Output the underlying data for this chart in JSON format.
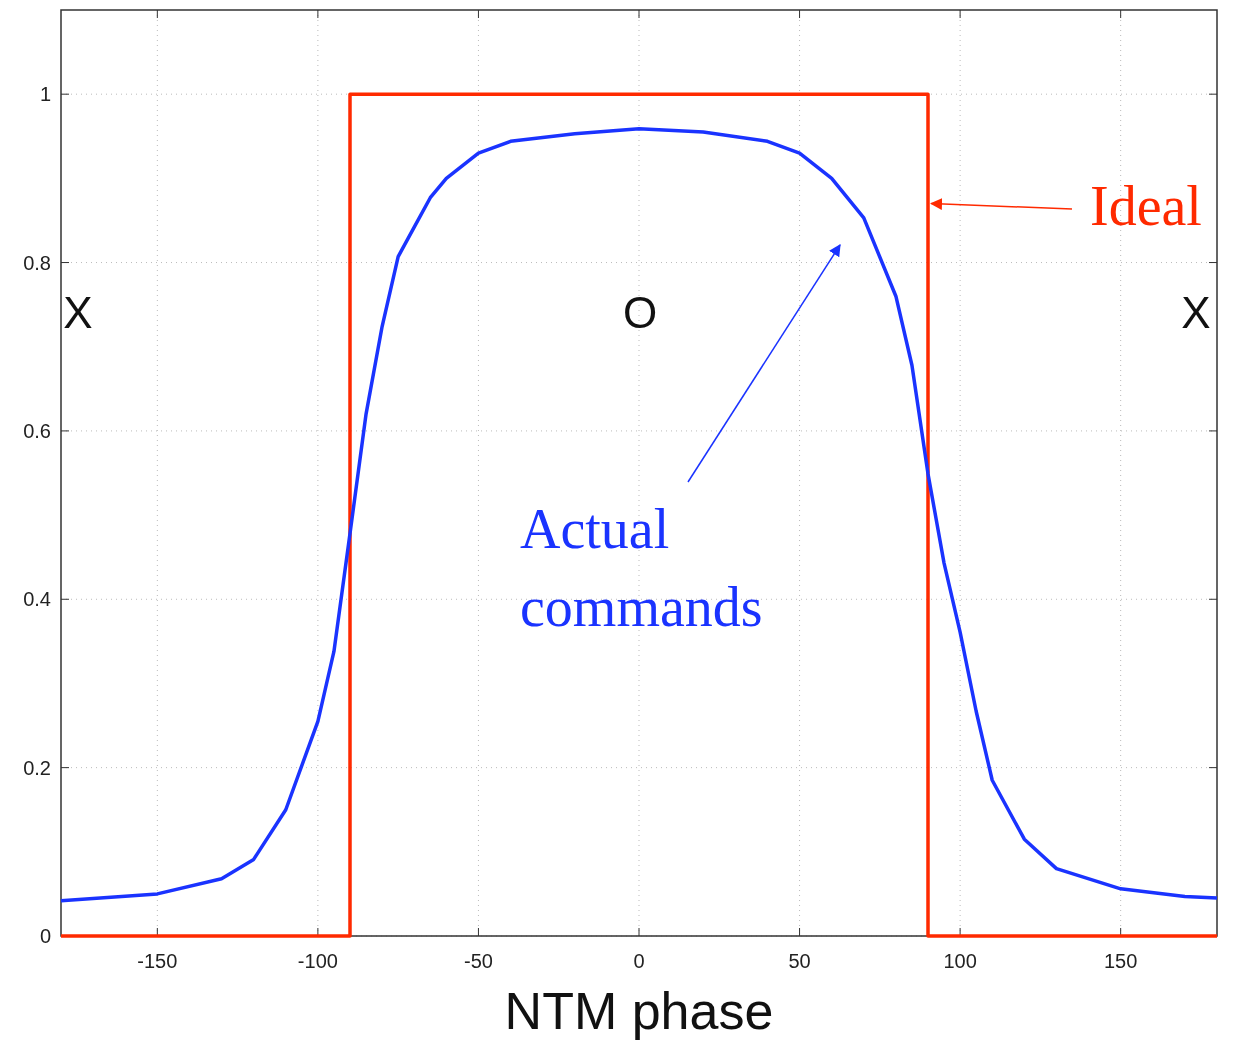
{
  "chart_data": {
    "type": "line",
    "xlabel": "NTM phase",
    "xlim": [
      -180,
      180
    ],
    "ylim": [
      0,
      1.1
    ],
    "xticks": [
      -150,
      -100,
      -50,
      0,
      50,
      100,
      150
    ],
    "yticks": [
      0,
      0.2,
      0.4,
      0.6,
      0.8,
      1
    ],
    "grid": true,
    "line_style": "solid",
    "marker": "none",
    "series": [
      {
        "type": "step",
        "color": "#ff2a00",
        "x": [
          -180,
          -90,
          -90,
          90,
          90,
          180
        ],
        "values": [
          0,
          0,
          1,
          1,
          0,
          0
        ]
      },
      {
        "color": "#1a33ff",
        "x": [
          -180,
          -150,
          -130,
          -120,
          -110,
          -100,
          -95,
          -90,
          -85,
          -80,
          -75,
          -70,
          -65,
          -60,
          -50,
          -40,
          -20,
          0,
          20,
          40,
          50,
          60,
          70,
          80,
          85,
          90,
          95,
          100,
          105,
          110,
          120,
          130,
          150,
          170,
          180
        ],
        "values": [
          0.042,
          0.05,
          0.068,
          0.091,
          0.15,
          0.255,
          0.338,
          0.478,
          0.62,
          0.724,
          0.807,
          0.842,
          0.877,
          0.9,
          0.93,
          0.944,
          0.953,
          0.959,
          0.955,
          0.944,
          0.93,
          0.9,
          0.853,
          0.76,
          0.678,
          0.549,
          0.443,
          0.361,
          0.267,
          0.185,
          0.115,
          0.08,
          0.056,
          0.047,
          0.045
        ]
      }
    ],
    "annotations": [
      {
        "text": "Ideal",
        "x": 91,
        "y": 0.87
      },
      "Actual commands",
      "X",
      "O",
      "X"
    ]
  }
}
